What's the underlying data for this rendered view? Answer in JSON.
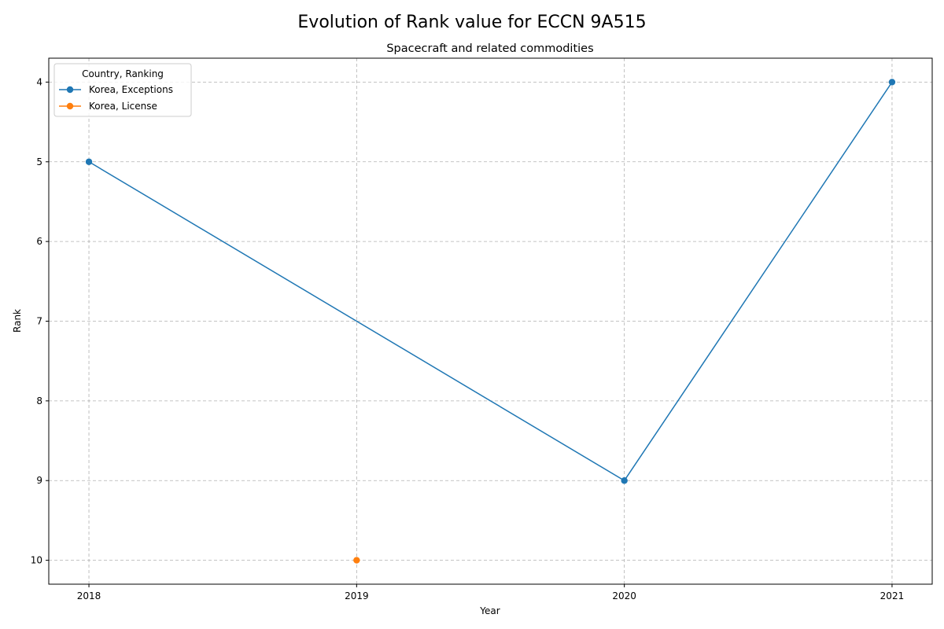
{
  "chart_data": {
    "type": "line",
    "title": "Evolution of Rank value for ECCN 9A515",
    "subtitle": "Spacecraft and related commodities",
    "xlabel": "Year",
    "ylabel": "Rank",
    "x_ticks": [
      "2018",
      "2019",
      "2020",
      "2021"
    ],
    "y_ticks": [
      4,
      5,
      6,
      7,
      8,
      9,
      10
    ],
    "xlim": [
      2017.85,
      2021.15
    ],
    "ylim": [
      10.3,
      3.7
    ],
    "y_inverted": true,
    "grid": true,
    "legend": {
      "title": "Country, Ranking",
      "placement": "top-left"
    },
    "series": [
      {
        "name": "Korea, Exceptions",
        "color": "#1f77b4",
        "x": [
          2018,
          2020,
          2021
        ],
        "y": [
          5,
          9,
          4
        ]
      },
      {
        "name": "Korea, License",
        "color": "#ff7f0e",
        "x": [
          2019
        ],
        "y": [
          10
        ]
      }
    ]
  }
}
